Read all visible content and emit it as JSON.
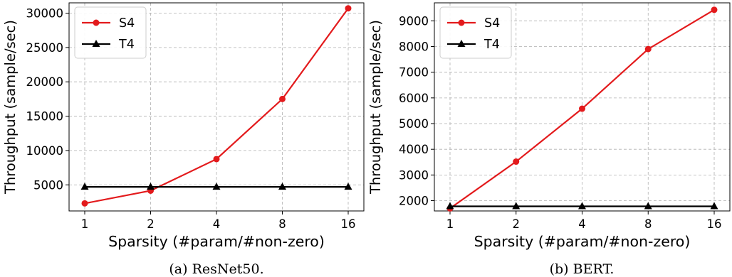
{
  "colors": {
    "S4": "#e31a1c",
    "T4": "#000000",
    "grid": "#b0b0b0"
  },
  "chart_data": [
    {
      "type": "line",
      "caption": "(a) ResNet50.",
      "x_scale": "log2",
      "categories": [
        "1",
        "2",
        "4",
        "8",
        "16"
      ],
      "x": [
        1,
        2,
        4,
        8,
        16
      ],
      "xlabel": "Sparsity  (#param/#non-zero)",
      "ylabel": "Throughput (sample/sec)",
      "ylim": [
        1200,
        31500
      ],
      "yticks": [
        5000,
        10000,
        15000,
        20000,
        25000,
        30000
      ],
      "grid": true,
      "legend": "top-left",
      "series": [
        {
          "name": "S4",
          "marker": "circle",
          "values": [
            2300,
            4150,
            8750,
            17500,
            30700
          ]
        },
        {
          "name": "T4",
          "marker": "triangle",
          "values": [
            4700,
            4700,
            4700,
            4700,
            4700
          ]
        }
      ]
    },
    {
      "type": "line",
      "caption": "(b) BERT.",
      "x_scale": "log2",
      "categories": [
        "1",
        "2",
        "4",
        "8",
        "16"
      ],
      "x": [
        1,
        2,
        4,
        8,
        16
      ],
      "xlabel": "Sparsity  (#param/#non-zero)",
      "ylabel": "Throughput (sample/sec)",
      "ylim": [
        1600,
        9700
      ],
      "yticks": [
        2000,
        3000,
        4000,
        5000,
        6000,
        7000,
        8000,
        9000
      ],
      "grid": true,
      "legend": "top-left",
      "series": [
        {
          "name": "S4",
          "marker": "circle",
          "values": [
            1700,
            3520,
            5580,
            7900,
            9430
          ]
        },
        {
          "name": "T4",
          "marker": "triangle",
          "values": [
            1780,
            1780,
            1780,
            1780,
            1780
          ]
        }
      ]
    }
  ]
}
